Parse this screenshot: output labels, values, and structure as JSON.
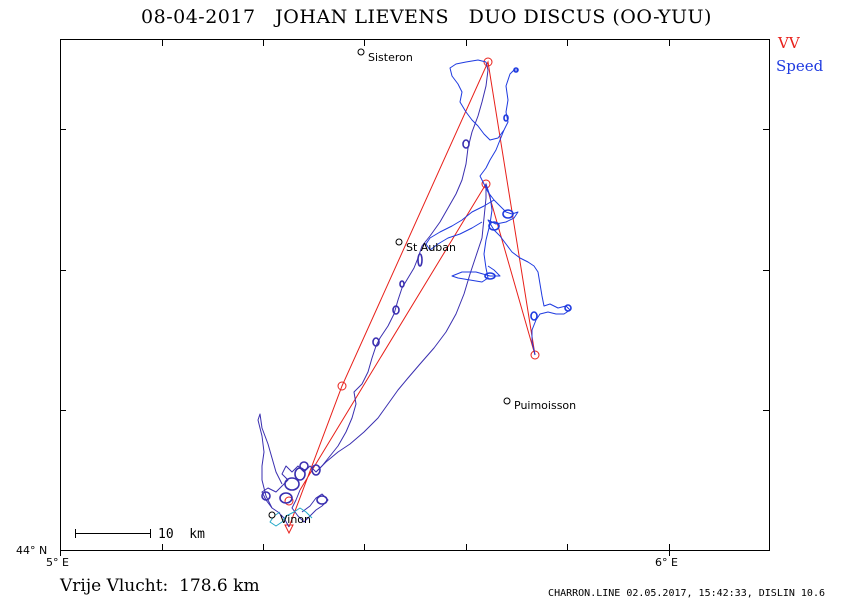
{
  "header": {
    "title": "08-04-2017   JOHAN LIEVENS   DUO DISCUS (OO-YUU)"
  },
  "legend": {
    "vv": "VV",
    "speed": "Speed",
    "vv_color": "#e8201a",
    "speed_color": "#1f3be0"
  },
  "axes": {
    "lat_label": "44° N",
    "lon_left_label": "5° E",
    "lon_right_label": "6° E"
  },
  "scale_bar": {
    "label": "10  km"
  },
  "places": [
    {
      "name": "Sisteron"
    },
    {
      "name": "St Auban"
    },
    {
      "name": "Puimoisson"
    },
    {
      "name": "Vinon"
    }
  ],
  "footer": {
    "distance": "Vrije Vlucht:  178.6 km",
    "credit": "CHARRON.LINE 02.05.2017, 15:42:33, DISLIN 10.6"
  }
}
